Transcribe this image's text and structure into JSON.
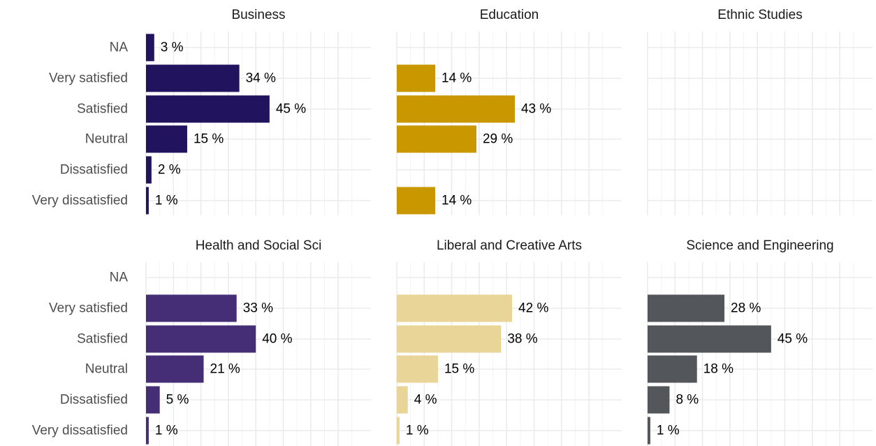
{
  "chart_data": {
    "type": "bar",
    "orientation": "horizontal",
    "layout": "facet-grid",
    "facet_rows": 2,
    "facet_cols": 3,
    "value_suffix": " %",
    "grid": true,
    "legend": "none",
    "categories": [
      "NA",
      "Very satisfied",
      "Satisfied",
      "Neutral",
      "Dissatisfied",
      "Very dissatisfied"
    ],
    "xlim": [
      0,
      50
    ],
    "facets": [
      {
        "name": "Business",
        "color": "#22135f",
        "values": [
          3,
          34,
          45,
          15,
          2,
          1
        ]
      },
      {
        "name": "Education",
        "color": "#c99700",
        "values": [
          null,
          14,
          43,
          29,
          null,
          14
        ]
      },
      {
        "name": "Ethnic Studies",
        "color": "#888888",
        "values": [
          null,
          null,
          null,
          null,
          null,
          null
        ]
      },
      {
        "name": "Health and Social Sci",
        "color": "#452e76",
        "values": [
          null,
          33,
          40,
          21,
          5,
          1
        ]
      },
      {
        "name": "Liberal and Creative Arts",
        "color": "#e8d597",
        "values": [
          null,
          42,
          38,
          15,
          4,
          1
        ]
      },
      {
        "name": "Science and Engineering",
        "color": "#53565a",
        "values": [
          null,
          28,
          45,
          18,
          8,
          1
        ]
      }
    ]
  }
}
